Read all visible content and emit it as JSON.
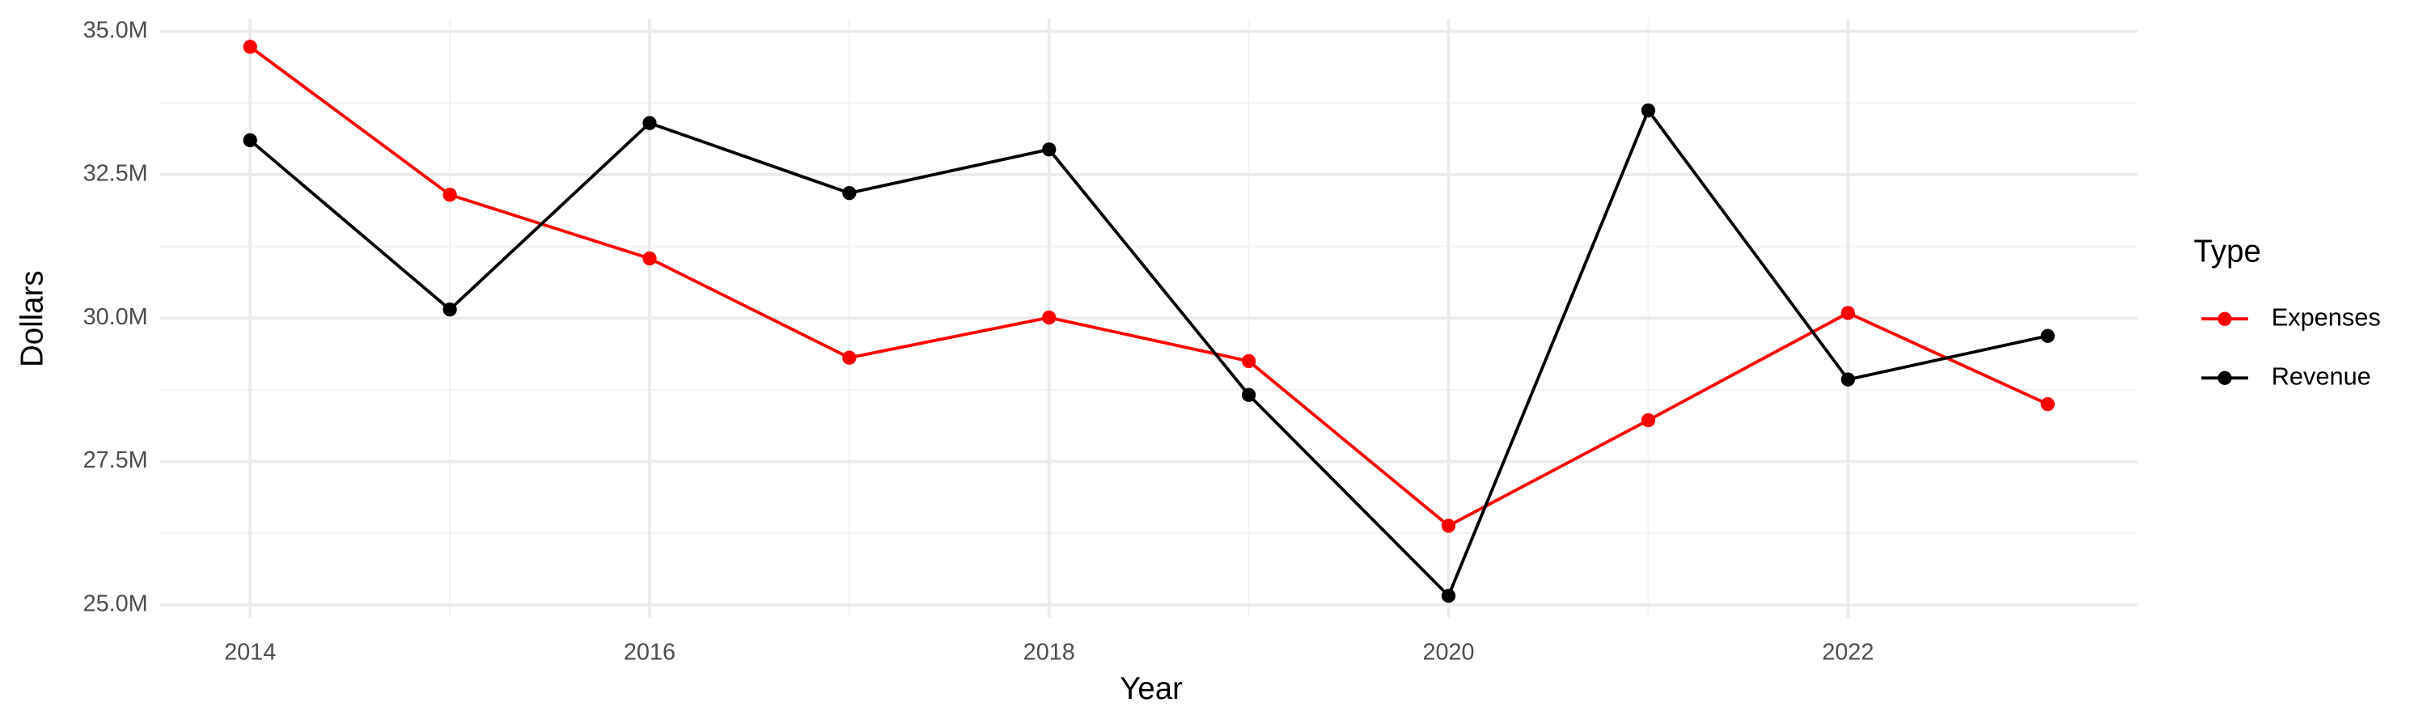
{
  "chart_data": {
    "type": "line",
    "x_label": "Year",
    "y_label": "Dollars",
    "x": [
      2014,
      2015,
      2016,
      2017,
      2018,
      2019,
      2020,
      2021,
      2022,
      2023
    ],
    "series": [
      {
        "name": "Expenses",
        "color": "#ff0000",
        "values": [
          34730000,
          32150000,
          31040000,
          29310000,
          30010000,
          29250000,
          26380000,
          28220000,
          30090000,
          28500000
        ]
      },
      {
        "name": "Revenue",
        "color": "#000000",
        "values": [
          33100000,
          30150000,
          33400000,
          32180000,
          32940000,
          28660000,
          25160000,
          33620000,
          28930000,
          29690000
        ]
      }
    ],
    "xlim": [
      2013.55,
      2023.45
    ],
    "xticks": [
      2014,
      2016,
      2018,
      2020,
      2022
    ],
    "ylim": [
      24780000,
      35220000
    ],
    "yticks": [
      {
        "value": 25000000,
        "label": "25.0M"
      },
      {
        "value": 27500000,
        "label": "27.5M"
      },
      {
        "value": 30000000,
        "label": "30.0M"
      },
      {
        "value": 32500000,
        "label": "32.5M"
      },
      {
        "value": 35000000,
        "label": "35.0M"
      }
    ],
    "grid": true,
    "legend_title": "Type",
    "legend_position": "right"
  }
}
